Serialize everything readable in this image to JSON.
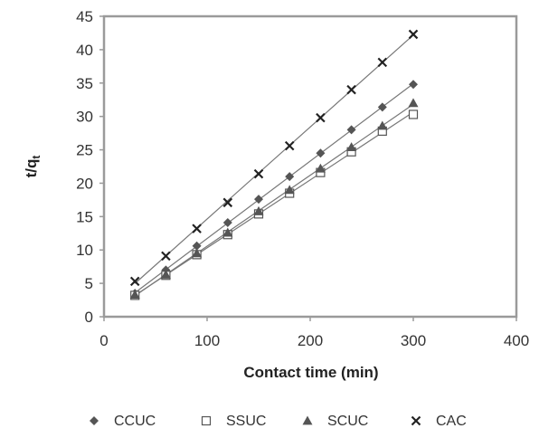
{
  "chart_data": {
    "type": "scatter",
    "title": "",
    "xlabel": "Contact time (min)",
    "ylabel_main": "t/q",
    "ylabel_sub": "t",
    "xlim": [
      0,
      400
    ],
    "ylim": [
      0,
      45
    ],
    "x_ticks": [
      "0",
      "100",
      "200",
      "300",
      "400"
    ],
    "y_ticks": [
      "0",
      "5",
      "10",
      "15",
      "20",
      "25",
      "30",
      "35",
      "40",
      "45"
    ],
    "grid": false,
    "trendlines": true,
    "legend_position": "bottom",
    "x": [
      30,
      60,
      90,
      120,
      150,
      180,
      210,
      240,
      270,
      300
    ],
    "series": [
      {
        "name": "CCUC",
        "marker": "diamond",
        "color": "#555555",
        "values": [
          3.5,
          7.0,
          10.6,
          14.1,
          17.6,
          21.0,
          24.5,
          28.0,
          31.4,
          34.8
        ]
      },
      {
        "name": "SSUC",
        "marker": "square-open",
        "color": "#555555",
        "values": [
          3.2,
          6.2,
          9.3,
          12.3,
          15.4,
          18.5,
          21.6,
          24.7,
          27.8,
          30.3
        ]
      },
      {
        "name": "SCUC",
        "marker": "triangle",
        "color": "#555555",
        "values": [
          3.3,
          6.3,
          9.5,
          12.6,
          15.8,
          19.0,
          22.2,
          25.4,
          28.6,
          32.0
        ]
      },
      {
        "name": "CAC",
        "marker": "x",
        "color": "#222222",
        "values": [
          5.3,
          9.1,
          13.2,
          17.1,
          21.4,
          25.6,
          29.8,
          34.0,
          38.1,
          42.3
        ]
      }
    ]
  }
}
